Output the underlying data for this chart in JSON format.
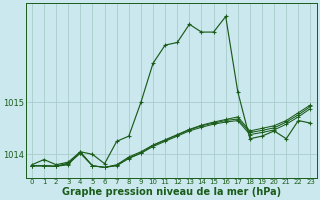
{
  "xlabel": "Graphe pression niveau de la mer (hPa)",
  "ylabel": "",
  "background_color": "#cce8ef",
  "grid_color": "#aacccc",
  "line_color": "#1a5c1a",
  "x_values": [
    0,
    1,
    2,
    3,
    4,
    5,
    6,
    7,
    8,
    9,
    10,
    11,
    12,
    13,
    14,
    15,
    16,
    17,
    18,
    19,
    20,
    21,
    22,
    23
  ],
  "series1": [
    1013.8,
    1013.9,
    1013.8,
    1013.85,
    1014.05,
    1014.0,
    1013.82,
    1014.25,
    1014.35,
    1015.0,
    1015.75,
    1016.1,
    1016.15,
    1016.5,
    1016.35,
    1016.35,
    1016.65,
    1015.2,
    1014.3,
    1014.35,
    1014.45,
    1014.3,
    1014.65,
    1014.6
  ],
  "series2": [
    1013.78,
    1013.78,
    1013.77,
    1013.8,
    1014.05,
    1013.78,
    1013.75,
    1013.78,
    1013.92,
    1014.02,
    1014.15,
    1014.25,
    1014.35,
    1014.45,
    1014.52,
    1014.58,
    1014.62,
    1014.65,
    1014.38,
    1014.42,
    1014.47,
    1014.58,
    1014.72,
    1014.88
  ],
  "series3": [
    1013.78,
    1013.78,
    1013.77,
    1013.82,
    1014.02,
    1013.78,
    1013.75,
    1013.8,
    1013.95,
    1014.05,
    1014.18,
    1014.28,
    1014.38,
    1014.48,
    1014.56,
    1014.62,
    1014.67,
    1014.72,
    1014.45,
    1014.5,
    1014.55,
    1014.65,
    1014.8,
    1014.95
  ],
  "series4": [
    1013.78,
    1013.78,
    1013.77,
    1013.83,
    1014.03,
    1013.78,
    1013.75,
    1013.79,
    1013.93,
    1014.03,
    1014.17,
    1014.27,
    1014.37,
    1014.47,
    1014.55,
    1014.6,
    1014.65,
    1014.68,
    1014.42,
    1014.46,
    1014.51,
    1014.62,
    1014.76,
    1014.92
  ],
  "ylim": [
    1013.55,
    1016.9
  ],
  "yticks": [
    1014.0,
    1015.0
  ],
  "label_fontsize": 7,
  "tick_fontsize": 6
}
